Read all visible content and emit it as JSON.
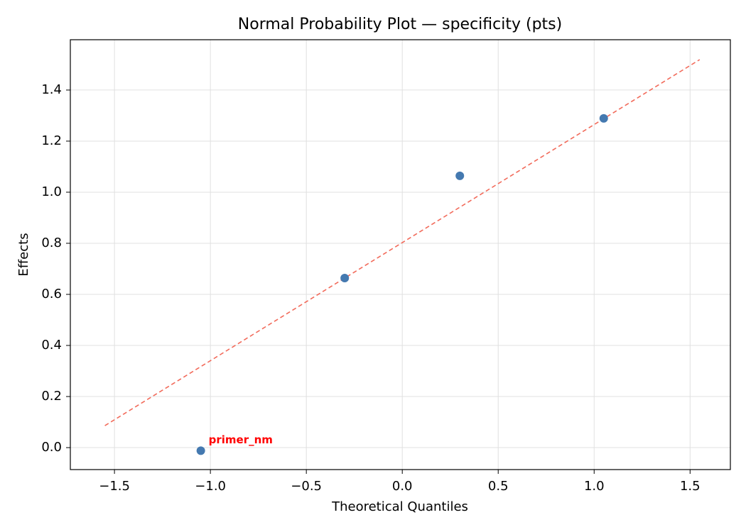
{
  "chart_data": {
    "type": "scatter",
    "title": "Normal Probability Plot — specificity (pts)",
    "x_label": "Theoretical Quantiles",
    "y_label": "Effects",
    "series": [
      {
        "color": "#4479b0",
        "x": [
          -1.05,
          -0.3,
          0.3,
          1.05
        ],
        "values": [
          -0.012,
          0.664,
          1.064,
          1.289
        ]
      }
    ],
    "reference_line": {
      "color": "#f26b5b",
      "dashed": true,
      "x": [
        -1.55,
        1.55
      ],
      "values": [
        0.086,
        1.519
      ]
    },
    "annotations": [
      {
        "text": "primer_nm",
        "x": -1.05,
        "y": -0.012,
        "color": "#ff0000"
      }
    ],
    "xlim": [
      -1.73,
      1.71
    ],
    "ylim": [
      -0.086,
      1.597
    ],
    "xticks": [
      {
        "value": -1.5,
        "label": "−1.5"
      },
      {
        "value": -1,
        "label": "−1.0"
      },
      {
        "value": -0.5,
        "label": "−0.5"
      },
      {
        "value": 0,
        "label": "0.0"
      },
      {
        "value": 0.5,
        "label": "0.5"
      },
      {
        "value": 1,
        "label": "1.0"
      },
      {
        "value": 1.5,
        "label": "1.5"
      }
    ],
    "yticks": [
      {
        "value": 0,
        "label": "0.0"
      },
      {
        "value": 0.2,
        "label": "0.2"
      },
      {
        "value": 0.4,
        "label": "0.4"
      },
      {
        "value": 0.6,
        "label": "0.6"
      },
      {
        "value": 0.8,
        "label": "0.8"
      },
      {
        "value": 1,
        "label": "1.0"
      },
      {
        "value": 1.2,
        "label": "1.2"
      },
      {
        "value": 1.4,
        "label": "1.4"
      }
    ],
    "grid": true
  }
}
